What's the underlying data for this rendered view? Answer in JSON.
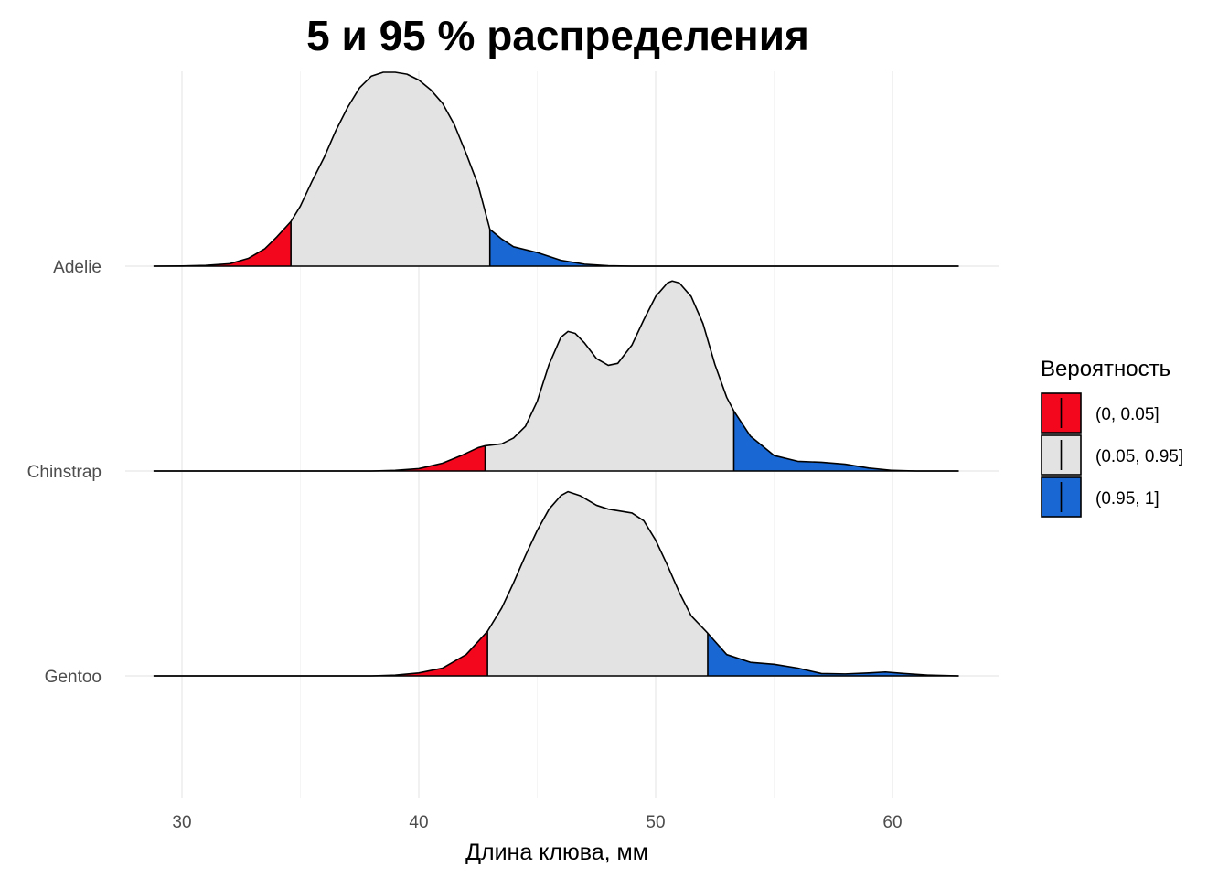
{
  "chart_data": {
    "type": "area",
    "subtype": "ridgeline-density",
    "title": "5 и 95 % распределения",
    "xlabel": "Длина клюва, мм",
    "ylabel": "",
    "xlim": [
      27.4,
      64.7
    ],
    "x_ticks": [
      30,
      40,
      50,
      60
    ],
    "grid": true,
    "legend": {
      "title": "Вероятность",
      "placement": "right",
      "entries": [
        {
          "label": "(0, 0.05]",
          "color": "#F2071D"
        },
        {
          "label": "(0.05, 0.95]",
          "color": "#E4E3E4"
        },
        {
          "label": "(0.95, 1]",
          "color": "#1967D2"
        }
      ]
    },
    "categories": [
      "Adelie",
      "Chinstrap",
      "Gentoo"
    ],
    "series": [
      {
        "name": "Adelie",
        "q05": 34.6,
        "q95": 43.0,
        "density": [
          [
            28.8,
            0
          ],
          [
            30,
            0.001
          ],
          [
            31,
            0.004
          ],
          [
            32,
            0.012
          ],
          [
            32.8,
            0.04
          ],
          [
            33.5,
            0.09
          ],
          [
            34.0,
            0.15
          ],
          [
            34.6,
            0.23
          ],
          [
            35,
            0.31
          ],
          [
            35.5,
            0.44
          ],
          [
            36,
            0.56
          ],
          [
            36.5,
            0.7
          ],
          [
            37,
            0.82
          ],
          [
            37.5,
            0.92
          ],
          [
            38,
            0.98
          ],
          [
            38.5,
            1.0
          ],
          [
            39,
            1.0
          ],
          [
            39.5,
            0.99
          ],
          [
            40,
            0.96
          ],
          [
            40.5,
            0.91
          ],
          [
            41,
            0.84
          ],
          [
            41.5,
            0.73
          ],
          [
            42,
            0.58
          ],
          [
            42.5,
            0.42
          ],
          [
            43.0,
            0.19
          ],
          [
            43.5,
            0.14
          ],
          [
            44,
            0.1
          ],
          [
            45,
            0.07
          ],
          [
            46,
            0.03
          ],
          [
            47,
            0.01
          ],
          [
            48,
            0.002
          ],
          [
            49,
            0
          ],
          [
            62.8,
            0
          ]
        ]
      },
      {
        "name": "Chinstrap",
        "q05": 42.8,
        "q95": 53.3,
        "density": [
          [
            28.8,
            0
          ],
          [
            38,
            0
          ],
          [
            39,
            0.003
          ],
          [
            40,
            0.012
          ],
          [
            41,
            0.04
          ],
          [
            41.8,
            0.08
          ],
          [
            42.5,
            0.12
          ],
          [
            42.8,
            0.13
          ],
          [
            43.5,
            0.14
          ],
          [
            44,
            0.17
          ],
          [
            44.5,
            0.23
          ],
          [
            45,
            0.36
          ],
          [
            45.5,
            0.55
          ],
          [
            46,
            0.69
          ],
          [
            46.3,
            0.72
          ],
          [
            46.6,
            0.71
          ],
          [
            47,
            0.66
          ],
          [
            47.5,
            0.58
          ],
          [
            48,
            0.545
          ],
          [
            48.4,
            0.555
          ],
          [
            49,
            0.65
          ],
          [
            49.5,
            0.78
          ],
          [
            50,
            0.9
          ],
          [
            50.5,
            0.97
          ],
          [
            50.7,
            0.98
          ],
          [
            51,
            0.97
          ],
          [
            51.5,
            0.9
          ],
          [
            52,
            0.76
          ],
          [
            52.5,
            0.55
          ],
          [
            53.0,
            0.38
          ],
          [
            53.3,
            0.31
          ],
          [
            54,
            0.18
          ],
          [
            55,
            0.08
          ],
          [
            56,
            0.05
          ],
          [
            57,
            0.045
          ],
          [
            58,
            0.035
          ],
          [
            59,
            0.015
          ],
          [
            60,
            0.003
          ],
          [
            61,
            0
          ],
          [
            62.8,
            0
          ]
        ]
      },
      {
        "name": "Gentoo",
        "q05": 42.9,
        "q95": 52.2,
        "density": [
          [
            28.8,
            0
          ],
          [
            38,
            0
          ],
          [
            39,
            0.004
          ],
          [
            40,
            0.015
          ],
          [
            41,
            0.04
          ],
          [
            42,
            0.11
          ],
          [
            42.9,
            0.23
          ],
          [
            43.5,
            0.35
          ],
          [
            44,
            0.48
          ],
          [
            44.5,
            0.62
          ],
          [
            45,
            0.75
          ],
          [
            45.5,
            0.86
          ],
          [
            46,
            0.93
          ],
          [
            46.3,
            0.95
          ],
          [
            46.8,
            0.93
          ],
          [
            47.5,
            0.88
          ],
          [
            48,
            0.86
          ],
          [
            48.5,
            0.85
          ],
          [
            49,
            0.84
          ],
          [
            49.5,
            0.8
          ],
          [
            50,
            0.7
          ],
          [
            50.5,
            0.57
          ],
          [
            51,
            0.43
          ],
          [
            51.5,
            0.31
          ],
          [
            52.2,
            0.22
          ],
          [
            53,
            0.11
          ],
          [
            54,
            0.07
          ],
          [
            55,
            0.06
          ],
          [
            56,
            0.04
          ],
          [
            57,
            0.012
          ],
          [
            58,
            0.01
          ],
          [
            59,
            0.015
          ],
          [
            59.7,
            0.02
          ],
          [
            60.5,
            0.012
          ],
          [
            61.5,
            0.004
          ],
          [
            62.8,
            0
          ]
        ]
      }
    ]
  }
}
